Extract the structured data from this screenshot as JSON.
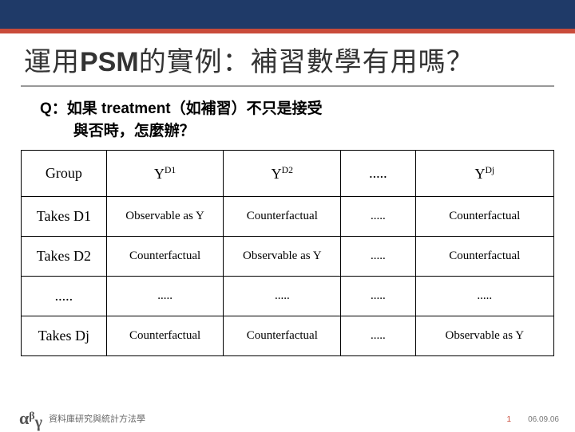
{
  "colors": {
    "stripe": "#1f3a68",
    "accent": "#c94b3a",
    "title_text": "#333333",
    "underline": "#999999",
    "body_text": "#000000",
    "border": "#000000",
    "footer_text": "#666666",
    "logo_text": "#555555",
    "background": "#ffffff"
  },
  "title": {
    "pre": "運用",
    "psm": "PSM",
    "post": "的實例：補習數學有用嗎？",
    "fontsize": 34
  },
  "question": {
    "line1": "Q：如果 treatment（如補習）不只是接受",
    "line2": "與否時，怎麼辦？",
    "fontsize": 19
  },
  "table": {
    "columns": [
      {
        "key": "group",
        "label_plain": "Group"
      },
      {
        "key": "d1",
        "label_base": "Y",
        "label_sup": "D1"
      },
      {
        "key": "d2",
        "label_base": "Y",
        "label_sup": "D2"
      },
      {
        "key": "dots",
        "label_plain": "....."
      },
      {
        "key": "dj",
        "label_base": "Y",
        "label_sup": "Dj"
      }
    ],
    "rows": [
      {
        "group": "Takes D1",
        "d1": "Observable as Y",
        "d2": "Counterfactual",
        "dots": ".....",
        "dj": "Counterfactual"
      },
      {
        "group": "Takes D2",
        "d1": "Counterfactual",
        "d2": "Observable as Y",
        "dots": ".....",
        "dj": "Counterfactual"
      },
      {
        "group": ".....",
        "d1": ".....",
        "d2": ".....",
        "dots": ".....",
        "dj": "....."
      },
      {
        "group": "Takes Dj",
        "d1": "Counterfactual",
        "d2": "Counterfactual",
        "dots": ".....",
        "dj": "Observable as Y"
      }
    ],
    "cell_fontsize": 15,
    "header_fontsize": 18,
    "border_width": 1.5
  },
  "footer": {
    "logo": {
      "alpha": "α",
      "beta": "β",
      "gamma": "γ"
    },
    "text": "資料庫研究與統計方法學",
    "page": "1",
    "date": "06.09.06"
  }
}
